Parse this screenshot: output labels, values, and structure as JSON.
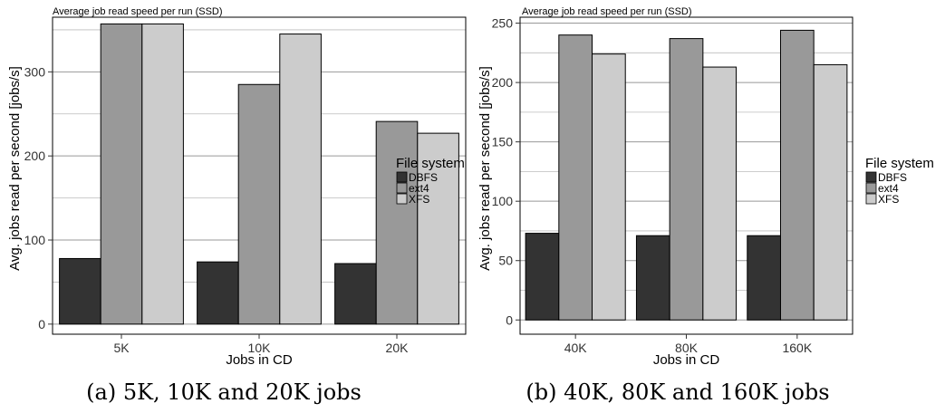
{
  "chart_data": [
    {
      "type": "bar",
      "title": "Average job read speed per run (SSD)",
      "xlabel": "Jobs in CD",
      "ylabel": "Avg. jobs read per second [jobs/s]",
      "categories": [
        "5K",
        "10K",
        "20K"
      ],
      "ylim": [
        -12,
        365
      ],
      "yticks": [
        0,
        100,
        200,
        300
      ],
      "legend_title": "File system",
      "legend_position": "right",
      "grid": true,
      "series": [
        {
          "name": "DBFS",
          "color": "#333333",
          "values": [
            78,
            74,
            72
          ]
        },
        {
          "name": "ext4",
          "color": "#999999",
          "values": [
            357,
            285,
            241
          ]
        },
        {
          "name": "XFS",
          "color": "#cccccc",
          "values": [
            357,
            345,
            227
          ]
        }
      ],
      "caption": "(a) 5K, 10K and 20K jobs"
    },
    {
      "type": "bar",
      "title": "Average job read speed per run (SSD)",
      "xlabel": "Jobs in CD",
      "ylabel": "Avg. jobs read per second [jobs/s]",
      "categories": [
        "40K",
        "80K",
        "160K"
      ],
      "ylim": [
        -12,
        255
      ],
      "yticks": [
        0,
        50,
        100,
        150,
        200,
        250
      ],
      "legend_title": "File system",
      "legend_position": "right",
      "grid": true,
      "series": [
        {
          "name": "DBFS",
          "color": "#333333",
          "values": [
            73,
            71,
            71
          ]
        },
        {
          "name": "ext4",
          "color": "#999999",
          "values": [
            240,
            237,
            244
          ]
        },
        {
          "name": "XFS",
          "color": "#cccccc",
          "values": [
            224,
            213,
            215
          ]
        }
      ],
      "caption": "(b) 40K, 80K and 160K jobs"
    }
  ]
}
